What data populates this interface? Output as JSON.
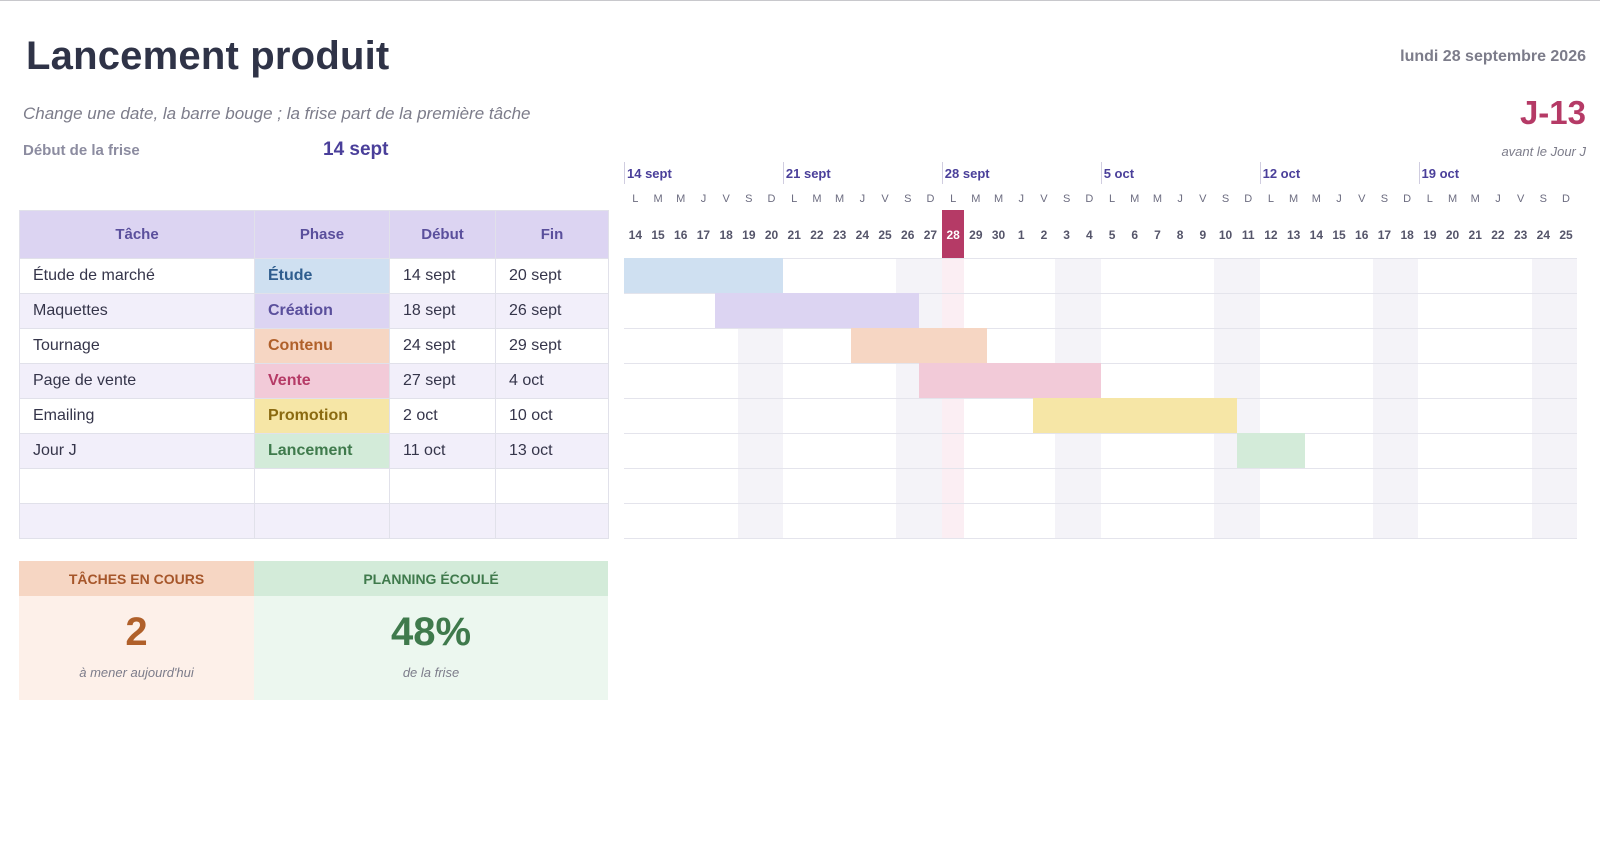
{
  "header": {
    "title": "Lancement produit",
    "subtitle": "Change une date, la barre bouge ; la frise part de la première tâche",
    "start_label": "Début de la frise",
    "start_value": "14 sept",
    "today": "lundi 28 septembre 2026",
    "countdown": "J-13",
    "countdown_note": "avant le Jour J"
  },
  "table": {
    "headers": [
      "Tâche",
      "Phase",
      "Début",
      "Fin"
    ],
    "rows": [
      {
        "task": "Étude de marché",
        "phase": "Étude",
        "start": "14 sept",
        "end": "20 sept"
      },
      {
        "task": "Maquettes",
        "phase": "Création",
        "start": "18 sept",
        "end": "26 sept"
      },
      {
        "task": "Tournage",
        "phase": "Contenu",
        "start": "24 sept",
        "end": "29 sept"
      },
      {
        "task": "Page de vente",
        "phase": "Vente",
        "start": "27 sept",
        "end": "4 oct"
      },
      {
        "task": "Emailing",
        "phase": "Promotion",
        "start": "2 oct",
        "end": "10 oct"
      },
      {
        "task": "Jour J",
        "phase": "Lancement",
        "start": "11 oct",
        "end": "13 oct"
      },
      {
        "task": "",
        "phase": "",
        "start": "",
        "end": ""
      },
      {
        "task": "",
        "phase": "",
        "start": "",
        "end": ""
      }
    ]
  },
  "phase_colors": {
    "Étude": {
      "bg": "#cfe0f1",
      "text": "#2f5d8e",
      "bar": "#cfe0f1"
    },
    "Création": {
      "bg": "#dcd4f2",
      "text": "#5a4f9c",
      "bar": "#dcd4f2"
    },
    "Contenu": {
      "bg": "#f6d6c3",
      "text": "#b0602a",
      "bar": "#f6d6c3"
    },
    "Vente": {
      "bg": "#f2cad8",
      "text": "#b53a66",
      "bar": "#f2cad8"
    },
    "Promotion": {
      "bg": "#f6e6a6",
      "text": "#8a6a10",
      "bar": "#f6e6a6"
    },
    "Lancement": {
      "bg": "#d3ebd9",
      "text": "#3f7a4c",
      "bar": "#d3ebd9"
    }
  },
  "kpis": {
    "in_progress": {
      "label": "TÂCHES EN COURS",
      "value": "2",
      "note": "à mener aujourd'hui"
    },
    "elapsed": {
      "label": "PLANNING ÉCOULÉ",
      "value": "48%",
      "note": "de la frise"
    }
  },
  "timeline": {
    "weeks": [
      "14 sept",
      "21 sept",
      "28 sept",
      "5 oct",
      "12 oct",
      "19 oct"
    ],
    "weekday_letters": [
      "L",
      "M",
      "M",
      "J",
      "V",
      "S",
      "D"
    ],
    "days": [
      "14",
      "15",
      "16",
      "17",
      "18",
      "19",
      "20",
      "21",
      "22",
      "23",
      "24",
      "25",
      "26",
      "27",
      "28",
      "29",
      "30",
      "1",
      "2",
      "3",
      "4",
      "5",
      "6",
      "7",
      "8",
      "9",
      "10",
      "11",
      "12",
      "13",
      "14",
      "15",
      "16",
      "17",
      "18",
      "19",
      "20",
      "21",
      "22",
      "23",
      "24",
      "25"
    ],
    "today_index": 14,
    "bars": [
      {
        "row": 0,
        "start_index": 0,
        "end_index": 6,
        "phase": "Étude"
      },
      {
        "row": 1,
        "start_index": 4,
        "end_index": 12,
        "phase": "Création"
      },
      {
        "row": 2,
        "start_index": 10,
        "end_index": 15,
        "phase": "Contenu"
      },
      {
        "row": 3,
        "start_index": 13,
        "end_index": 20,
        "phase": "Vente"
      },
      {
        "row": 4,
        "start_index": 18,
        "end_index": 26,
        "phase": "Promotion"
      },
      {
        "row": 5,
        "start_index": 27,
        "end_index": 29,
        "phase": "Lancement"
      }
    ]
  }
}
